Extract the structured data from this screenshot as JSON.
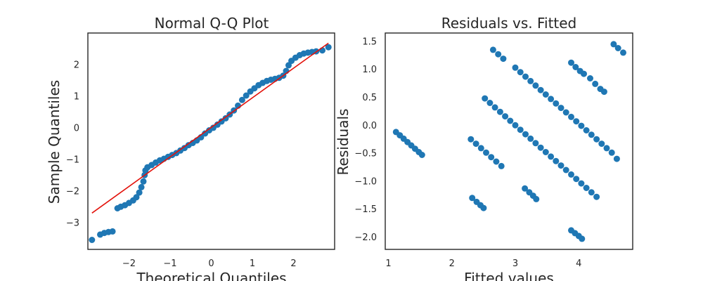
{
  "chart_data": [
    {
      "type": "scatter",
      "title": "Normal Q-Q Plot",
      "xlabel": "Theoretical Quantiles",
      "ylabel": "Sample Quantiles",
      "xlim": [
        -3.0,
        3.0
      ],
      "ylim": [
        -3.85,
        3.0
      ],
      "xticks": [
        -2,
        -1,
        0,
        1,
        2
      ],
      "xtick_labels": [
        "−2",
        "−1",
        "0",
        "1",
        "2"
      ],
      "yticks": [
        -3,
        -2,
        -1,
        0,
        1,
        2
      ],
      "ytick_labels": [
        "−3",
        "−2",
        "−1",
        "0",
        "1",
        "2"
      ],
      "grid": false,
      "marker_color": "#1f77b4",
      "line_color": "#e3120b",
      "reference_line": {
        "x": [
          -2.9,
          2.85
        ],
        "y": [
          -2.7,
          2.68
        ]
      },
      "points": [
        [
          -2.9,
          -3.55
        ],
        [
          -2.7,
          -3.38
        ],
        [
          -2.6,
          -3.33
        ],
        [
          -2.5,
          -3.3
        ],
        [
          -2.4,
          -3.28
        ],
        [
          -2.28,
          -2.55
        ],
        [
          -2.2,
          -2.5
        ],
        [
          -2.1,
          -2.45
        ],
        [
          -2.0,
          -2.38
        ],
        [
          -1.9,
          -2.3
        ],
        [
          -1.82,
          -2.2
        ],
        [
          -1.75,
          -2.05
        ],
        [
          -1.7,
          -1.88
        ],
        [
          -1.65,
          -1.7
        ],
        [
          -1.62,
          -1.5
        ],
        [
          -1.6,
          -1.35
        ],
        [
          -1.55,
          -1.25
        ],
        [
          -1.45,
          -1.18
        ],
        [
          -1.35,
          -1.1
        ],
        [
          -1.25,
          -1.03
        ],
        [
          -1.15,
          -0.98
        ],
        [
          -1.05,
          -0.92
        ],
        [
          -0.95,
          -0.86
        ],
        [
          -0.85,
          -0.8
        ],
        [
          -0.75,
          -0.72
        ],
        [
          -0.65,
          -0.64
        ],
        [
          -0.55,
          -0.55
        ],
        [
          -0.45,
          -0.48
        ],
        [
          -0.35,
          -0.4
        ],
        [
          -0.25,
          -0.3
        ],
        [
          -0.15,
          -0.18
        ],
        [
          -0.05,
          -0.08
        ],
        [
          0.05,
          0.0
        ],
        [
          0.15,
          0.1
        ],
        [
          0.25,
          0.2
        ],
        [
          0.35,
          0.3
        ],
        [
          0.45,
          0.42
        ],
        [
          0.55,
          0.55
        ],
        [
          0.65,
          0.7
        ],
        [
          0.75,
          0.88
        ],
        [
          0.85,
          1.02
        ],
        [
          0.95,
          1.15
        ],
        [
          1.05,
          1.25
        ],
        [
          1.15,
          1.35
        ],
        [
          1.25,
          1.42
        ],
        [
          1.35,
          1.48
        ],
        [
          1.45,
          1.52
        ],
        [
          1.55,
          1.55
        ],
        [
          1.65,
          1.58
        ],
        [
          1.75,
          1.65
        ],
        [
          1.82,
          1.8
        ],
        [
          1.88,
          1.98
        ],
        [
          1.95,
          2.12
        ],
        [
          2.05,
          2.22
        ],
        [
          2.15,
          2.3
        ],
        [
          2.25,
          2.35
        ],
        [
          2.35,
          2.38
        ],
        [
          2.45,
          2.4
        ],
        [
          2.55,
          2.42
        ],
        [
          2.7,
          2.45
        ],
        [
          2.85,
          2.55
        ]
      ]
    },
    {
      "type": "scatter",
      "title": "Residuals vs. Fitted",
      "xlabel": "Fitted values",
      "ylabel": "Residuals",
      "xlim": [
        0.95,
        4.85
      ],
      "ylim": [
        -2.22,
        1.65
      ],
      "xticks": [
        1,
        2,
        3,
        4
      ],
      "xtick_labels": [
        "1",
        "2",
        "3",
        "4"
      ],
      "yticks": [
        -2.0,
        -1.5,
        -1.0,
        -0.5,
        0.0,
        0.5,
        1.0,
        1.5
      ],
      "ytick_labels": [
        "−2.0",
        "−1.5",
        "−1.0",
        "−0.5",
        "0.0",
        "0.5",
        "1.0",
        "1.5"
      ],
      "grid": false,
      "marker_color": "#1f77b4",
      "points": [
        [
          1.12,
          -0.12
        ],
        [
          1.18,
          -0.18
        ],
        [
          1.24,
          -0.24
        ],
        [
          1.3,
          -0.3
        ],
        [
          1.36,
          -0.36
        ],
        [
          1.42,
          -0.42
        ],
        [
          1.48,
          -0.48
        ],
        [
          1.53,
          -0.53
        ],
        [
          2.3,
          -0.25
        ],
        [
          2.38,
          -0.33
        ],
        [
          2.46,
          -0.41
        ],
        [
          2.54,
          -0.49
        ],
        [
          2.62,
          -0.57
        ],
        [
          2.7,
          -0.65
        ],
        [
          2.78,
          -0.73
        ],
        [
          2.32,
          -1.3
        ],
        [
          2.39,
          -1.37
        ],
        [
          2.45,
          -1.43
        ],
        [
          2.5,
          -1.48
        ],
        [
          2.52,
          0.48
        ],
        [
          2.6,
          0.4
        ],
        [
          2.68,
          0.32
        ],
        [
          2.76,
          0.24
        ],
        [
          2.84,
          0.16
        ],
        [
          2.92,
          0.08
        ],
        [
          3.0,
          0.0
        ],
        [
          3.08,
          -0.08
        ],
        [
          3.16,
          -0.16
        ],
        [
          3.24,
          -0.24
        ],
        [
          3.32,
          -0.32
        ],
        [
          3.4,
          -0.4
        ],
        [
          3.48,
          -0.48
        ],
        [
          3.56,
          -0.56
        ],
        [
          3.64,
          -0.64
        ],
        [
          3.72,
          -0.72
        ],
        [
          3.8,
          -0.8
        ],
        [
          3.88,
          -0.88
        ],
        [
          3.96,
          -0.96
        ],
        [
          4.04,
          -1.04
        ],
        [
          4.12,
          -1.12
        ],
        [
          4.2,
          -1.2
        ],
        [
          4.28,
          -1.28
        ],
        [
          2.65,
          1.35
        ],
        [
          2.73,
          1.27
        ],
        [
          2.81,
          1.19
        ],
        [
          3.0,
          1.03
        ],
        [
          3.08,
          0.95
        ],
        [
          3.16,
          0.87
        ],
        [
          3.24,
          0.79
        ],
        [
          3.32,
          0.71
        ],
        [
          3.4,
          0.63
        ],
        [
          3.48,
          0.55
        ],
        [
          3.56,
          0.47
        ],
        [
          3.64,
          0.39
        ],
        [
          3.72,
          0.31
        ],
        [
          3.8,
          0.23
        ],
        [
          3.88,
          0.15
        ],
        [
          3.96,
          0.07
        ],
        [
          4.04,
          -0.01
        ],
        [
          4.12,
          -0.09
        ],
        [
          4.2,
          -0.17
        ],
        [
          4.28,
          -0.25
        ],
        [
          4.36,
          -0.33
        ],
        [
          4.44,
          -0.41
        ],
        [
          4.52,
          -0.49
        ],
        [
          4.6,
          -0.6
        ],
        [
          3.15,
          -1.13
        ],
        [
          3.22,
          -1.2
        ],
        [
          3.28,
          -1.26
        ],
        [
          3.33,
          -1.32
        ],
        [
          3.88,
          1.12
        ],
        [
          3.95,
          1.04
        ],
        [
          4.02,
          0.97
        ],
        [
          4.08,
          0.92
        ],
        [
          4.18,
          0.84
        ],
        [
          4.26,
          0.74
        ],
        [
          4.34,
          0.65
        ],
        [
          4.4,
          0.6
        ],
        [
          3.88,
          -1.88
        ],
        [
          3.94,
          -1.93
        ],
        [
          4.0,
          -1.98
        ],
        [
          4.05,
          -2.03
        ],
        [
          4.55,
          1.45
        ],
        [
          4.62,
          1.38
        ],
        [
          4.7,
          1.3
        ]
      ]
    }
  ]
}
